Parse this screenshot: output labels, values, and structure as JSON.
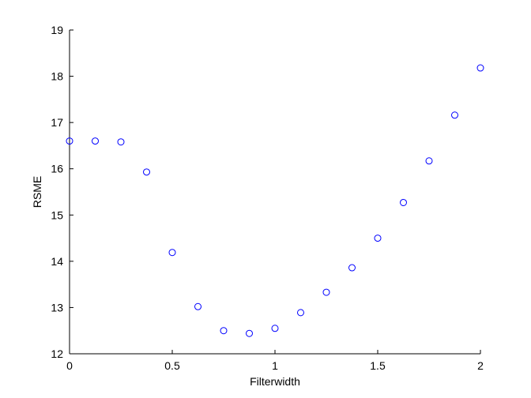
{
  "chart_data": {
    "type": "scatter",
    "title": "",
    "xlabel": "Filterwidth",
    "ylabel": "RSME",
    "xlim": [
      0,
      2
    ],
    "ylim": [
      12,
      19
    ],
    "x_ticks": [
      0,
      0.5,
      1,
      1.5,
      2
    ],
    "x_tick_labels": [
      "0",
      "0.5",
      "1",
      "1.5",
      "2"
    ],
    "y_ticks": [
      12,
      13,
      14,
      15,
      16,
      17,
      18,
      19
    ],
    "y_tick_labels": [
      "12",
      "13",
      "14",
      "15",
      "16",
      "17",
      "18",
      "19"
    ],
    "grid": false,
    "marker": "circle-open",
    "colors": {
      "marker": "#0000ff",
      "axis": "#000000"
    },
    "series": [
      {
        "x": [
          0,
          0.125,
          0.25,
          0.375,
          0.5,
          0.625,
          0.75,
          0.875,
          1,
          1.125,
          1.25,
          1.375,
          1.5,
          1.625,
          1.75,
          1.875,
          2
        ],
        "y": [
          16.6,
          16.6,
          16.58,
          15.93,
          14.19,
          13.02,
          12.5,
          12.44,
          12.55,
          12.89,
          13.33,
          13.86,
          14.5,
          15.27,
          16.17,
          17.16,
          18.18
        ]
      }
    ]
  }
}
